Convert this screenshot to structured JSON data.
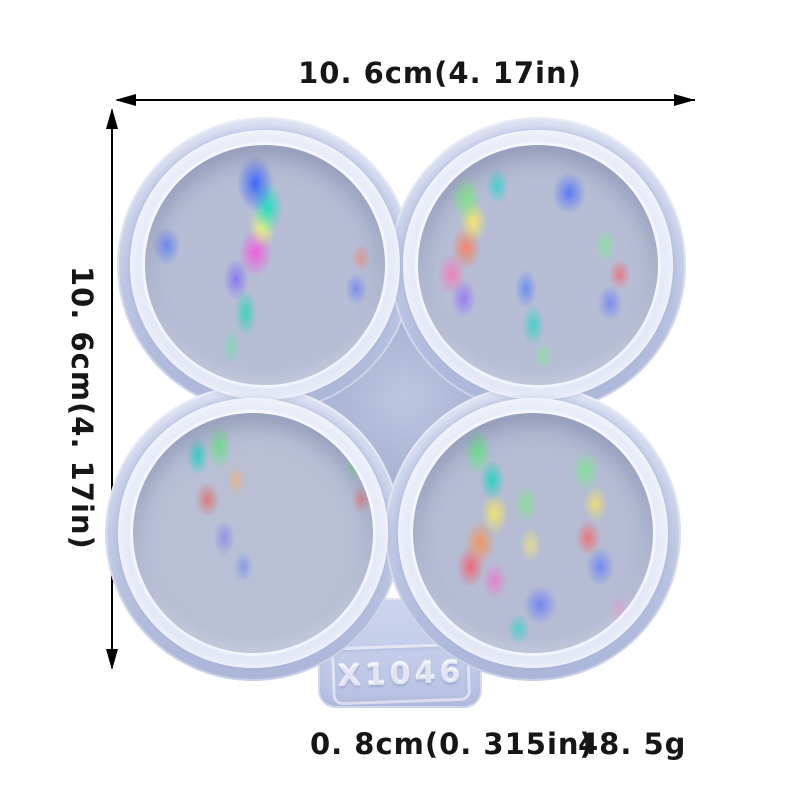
{
  "image": {
    "background_color": "#ffffff",
    "subject": "4-cavity round silicone resin mold with holographic film inserts, product photo with dimension annotations"
  },
  "annotations": {
    "width_label": "10. 6cm(4. 17in)",
    "height_label": "10. 6cm(4. 17in)",
    "thickness_label": "0. 8cm(0. 315in)",
    "weight_label": "48. 5g",
    "text_color": "#161616",
    "arrow_color": "#000000"
  },
  "mold": {
    "code": "X1046",
    "cavity_count": 4,
    "body_color": "#c4cdea",
    "rim_color": "#e7ebf8",
    "cavity_base_color": "#b6bdd5",
    "center_diamond_color": "#aeb8d6",
    "holographic_colors": [
      "#2a5aff",
      "#00e6be",
      "#78f078",
      "#faf26e",
      "#ff8c50",
      "#ff505a",
      "#ff46dc",
      "#8c64ff"
    ]
  }
}
